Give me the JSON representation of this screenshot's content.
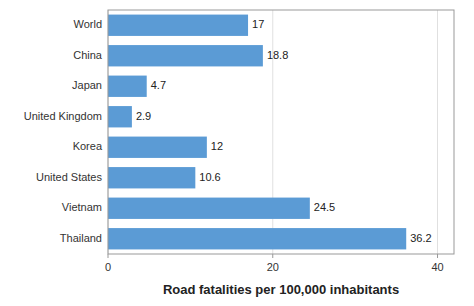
{
  "chart_data": {
    "type": "bar",
    "orientation": "horizontal",
    "categories": [
      "Thailand",
      "Vietnam",
      "United States",
      "Korea",
      "United Kingdom",
      "Japan",
      "China",
      "World"
    ],
    "values": [
      36.2,
      24.5,
      10.6,
      12,
      2.9,
      4.7,
      18.8,
      17
    ],
    "color": "#5b9bd5",
    "xlabel": "Road fatalities per 100,000 inhabitants",
    "xlim": [
      0,
      42
    ],
    "xticks": [
      0,
      20,
      40
    ],
    "grid": true,
    "data_labels": true
  }
}
